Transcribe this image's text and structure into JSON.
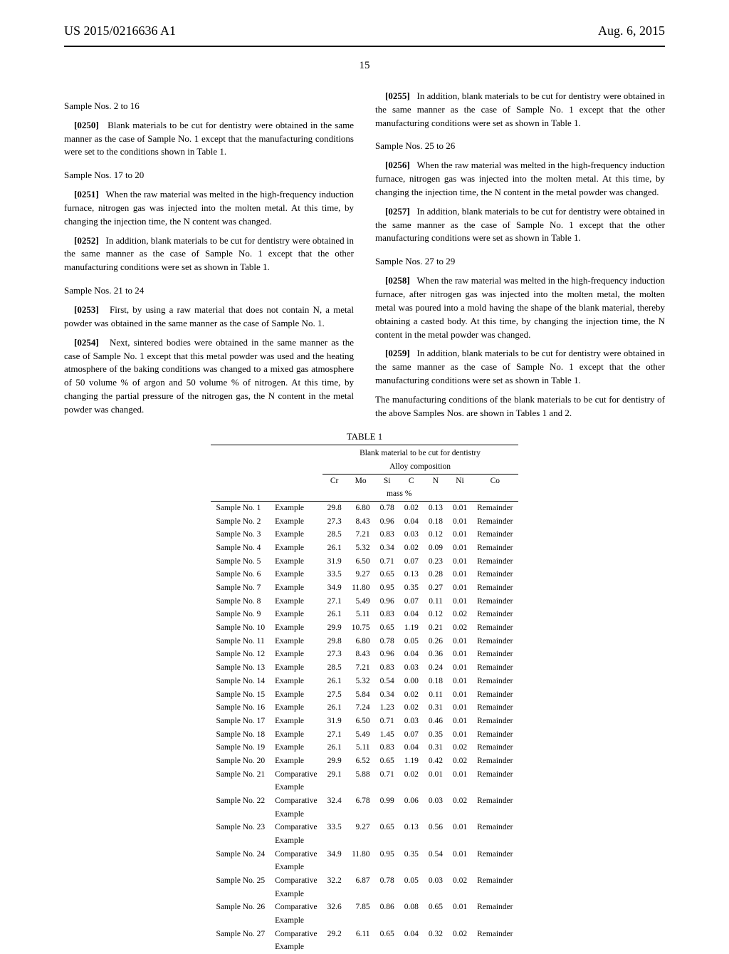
{
  "header": {
    "doc_number": "US 2015/0216636 A1",
    "date": "Aug. 6, 2015",
    "page_number": "15"
  },
  "left_column": {
    "sec1": {
      "heading": "Sample Nos. 2 to 16",
      "p1_num": "[0250]",
      "p1": "Blank materials to be cut for dentistry were obtained in the same manner as the case of Sample No. 1 except that the manufacturing conditions were set to the conditions shown in Table 1."
    },
    "sec2": {
      "heading": "Sample Nos. 17 to 20",
      "p1_num": "[0251]",
      "p1": "When the raw material was melted in the high-frequency induction furnace, nitrogen gas was injected into the molten metal. At this time, by changing the injection time, the N content was changed.",
      "p2_num": "[0252]",
      "p2": "In addition, blank materials to be cut for dentistry were obtained in the same manner as the case of Sample No. 1 except that the other manufacturing conditions were set as shown in Table 1."
    },
    "sec3": {
      "heading": "Sample Nos. 21 to 24",
      "p1_num": "[0253]",
      "p1": "First, by using a raw material that does not contain N, a metal powder was obtained in the same manner as the case of Sample No. 1.",
      "p2_num": "[0254]",
      "p2": "Next, sintered bodies were obtained in the same manner as the case of Sample No. 1 except that this metal powder was used and the heating atmosphere of the baking conditions was changed to a mixed gas atmosphere of 50 volume % of argon and 50 volume % of nitrogen. At this time, by changing the partial pressure of the nitrogen gas, the N content in the metal powder was changed."
    }
  },
  "right_column": {
    "p0_num": "[0255]",
    "p0": "In addition, blank materials to be cut for dentistry were obtained in the same manner as the case of Sample No. 1 except that the other manufacturing conditions were set as shown in Table 1.",
    "sec1": {
      "heading": "Sample Nos. 25 to 26",
      "p1_num": "[0256]",
      "p1": "When the raw material was melted in the high-frequency induction furnace, nitrogen gas was injected into the molten metal. At this time, by changing the injection time, the N content in the metal powder was changed.",
      "p2_num": "[0257]",
      "p2": "In addition, blank materials to be cut for dentistry were obtained in the same manner as the case of Sample No. 1 except that the other manufacturing conditions were set as shown in Table 1."
    },
    "sec2": {
      "heading": "Sample Nos. 27 to 29",
      "p1_num": "[0258]",
      "p1": "When the raw material was melted in the high-frequency induction furnace, after nitrogen gas was injected into the molten metal, the molten metal was poured into a mold having the shape of the blank material, thereby obtaining a casted body. At this time, by changing the injection time, the N content in the metal powder was changed.",
      "p2_num": "[0259]",
      "p2": "In addition, blank materials to be cut for dentistry were obtained in the same manner as the case of Sample No. 1 except that the other manufacturing conditions were set as shown in Table 1.",
      "p3": "The manufacturing conditions of the blank materials to be cut for dentistry of the above Samples Nos. are shown in Tables 1 and 2."
    }
  },
  "table": {
    "title": "TABLE 1",
    "super_header1": "Blank material to be cut for dentistry",
    "super_header2": "Alloy composition",
    "columns": [
      "Cr",
      "Mo",
      "Si",
      "C",
      "N",
      "Ni",
      "Co"
    ],
    "mass_unit": "mass %",
    "rows": [
      {
        "sample": "Sample No. 1",
        "type": "Example",
        "vals": [
          "29.8",
          "6.80",
          "0.78",
          "0.02",
          "0.13",
          "0.01",
          "Remainder"
        ]
      },
      {
        "sample": "Sample No. 2",
        "type": "Example",
        "vals": [
          "27.3",
          "8.43",
          "0.96",
          "0.04",
          "0.18",
          "0.01",
          "Remainder"
        ]
      },
      {
        "sample": "Sample No. 3",
        "type": "Example",
        "vals": [
          "28.5",
          "7.21",
          "0.83",
          "0.03",
          "0.12",
          "0.01",
          "Remainder"
        ]
      },
      {
        "sample": "Sample No. 4",
        "type": "Example",
        "vals": [
          "26.1",
          "5.32",
          "0.34",
          "0.02",
          "0.09",
          "0.01",
          "Remainder"
        ]
      },
      {
        "sample": "Sample No. 5",
        "type": "Example",
        "vals": [
          "31.9",
          "6.50",
          "0.71",
          "0.07",
          "0.23",
          "0.01",
          "Remainder"
        ]
      },
      {
        "sample": "Sample No. 6",
        "type": "Example",
        "vals": [
          "33.5",
          "9.27",
          "0.65",
          "0.13",
          "0.28",
          "0.01",
          "Remainder"
        ]
      },
      {
        "sample": "Sample No. 7",
        "type": "Example",
        "vals": [
          "34.9",
          "11.80",
          "0.95",
          "0.35",
          "0.27",
          "0.01",
          "Remainder"
        ]
      },
      {
        "sample": "Sample No. 8",
        "type": "Example",
        "vals": [
          "27.1",
          "5.49",
          "0.96",
          "0.07",
          "0.11",
          "0.01",
          "Remainder"
        ]
      },
      {
        "sample": "Sample No. 9",
        "type": "Example",
        "vals": [
          "26.1",
          "5.11",
          "0.83",
          "0.04",
          "0.12",
          "0.02",
          "Remainder"
        ]
      },
      {
        "sample": "Sample No. 10",
        "type": "Example",
        "vals": [
          "29.9",
          "10.75",
          "0.65",
          "1.19",
          "0.21",
          "0.02",
          "Remainder"
        ]
      },
      {
        "sample": "Sample No. 11",
        "type": "Example",
        "vals": [
          "29.8",
          "6.80",
          "0.78",
          "0.05",
          "0.26",
          "0.01",
          "Remainder"
        ]
      },
      {
        "sample": "Sample No. 12",
        "type": "Example",
        "vals": [
          "27.3",
          "8.43",
          "0.96",
          "0.04",
          "0.36",
          "0.01",
          "Remainder"
        ]
      },
      {
        "sample": "Sample No. 13",
        "type": "Example",
        "vals": [
          "28.5",
          "7.21",
          "0.83",
          "0.03",
          "0.24",
          "0.01",
          "Remainder"
        ]
      },
      {
        "sample": "Sample No. 14",
        "type": "Example",
        "vals": [
          "26.1",
          "5.32",
          "0.54",
          "0.00",
          "0.18",
          "0.01",
          "Remainder"
        ]
      },
      {
        "sample": "Sample No. 15",
        "type": "Example",
        "vals": [
          "27.5",
          "5.84",
          "0.34",
          "0.02",
          "0.11",
          "0.01",
          "Remainder"
        ]
      },
      {
        "sample": "Sample No. 16",
        "type": "Example",
        "vals": [
          "26.1",
          "7.24",
          "1.23",
          "0.02",
          "0.31",
          "0.01",
          "Remainder"
        ]
      },
      {
        "sample": "Sample No. 17",
        "type": "Example",
        "vals": [
          "31.9",
          "6.50",
          "0.71",
          "0.03",
          "0.46",
          "0.01",
          "Remainder"
        ]
      },
      {
        "sample": "Sample No. 18",
        "type": "Example",
        "vals": [
          "27.1",
          "5.49",
          "1.45",
          "0.07",
          "0.35",
          "0.01",
          "Remainder"
        ]
      },
      {
        "sample": "Sample No. 19",
        "type": "Example",
        "vals": [
          "26.1",
          "5.11",
          "0.83",
          "0.04",
          "0.31",
          "0.02",
          "Remainder"
        ]
      },
      {
        "sample": "Sample No. 20",
        "type": "Example",
        "vals": [
          "29.9",
          "6.52",
          "0.65",
          "1.19",
          "0.42",
          "0.02",
          "Remainder"
        ]
      },
      {
        "sample": "Sample No. 21",
        "type": "Comparative Example",
        "vals": [
          "29.1",
          "5.88",
          "0.71",
          "0.02",
          "0.01",
          "0.01",
          "Remainder"
        ]
      },
      {
        "sample": "Sample No. 22",
        "type": "Comparative Example",
        "vals": [
          "32.4",
          "6.78",
          "0.99",
          "0.06",
          "0.03",
          "0.02",
          "Remainder"
        ]
      },
      {
        "sample": "Sample No. 23",
        "type": "Comparative Example",
        "vals": [
          "33.5",
          "9.27",
          "0.65",
          "0.13",
          "0.56",
          "0.01",
          "Remainder"
        ]
      },
      {
        "sample": "Sample No. 24",
        "type": "Comparative Example",
        "vals": [
          "34.9",
          "11.80",
          "0.95",
          "0.35",
          "0.54",
          "0.01",
          "Remainder"
        ]
      },
      {
        "sample": "Sample No. 25",
        "type": "Comparative Example",
        "vals": [
          "32.2",
          "6.87",
          "0.78",
          "0.05",
          "0.03",
          "0.02",
          "Remainder"
        ]
      },
      {
        "sample": "Sample No. 26",
        "type": "Comparative Example",
        "vals": [
          "32.6",
          "7.85",
          "0.86",
          "0.08",
          "0.65",
          "0.01",
          "Remainder"
        ]
      },
      {
        "sample": "Sample No. 27",
        "type": "Comparative Example",
        "vals": [
          "29.2",
          "6.11",
          "0.65",
          "0.04",
          "0.32",
          "0.02",
          "Remainder"
        ]
      }
    ]
  }
}
